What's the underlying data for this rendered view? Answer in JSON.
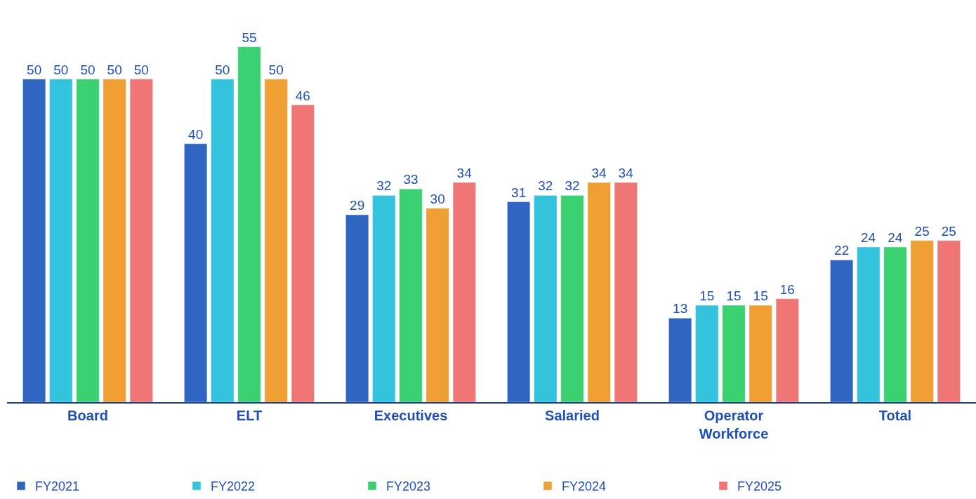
{
  "chart_data": {
    "type": "bar",
    "categories": [
      "Board",
      "ELT",
      "Executives",
      "Salaried",
      "Operator\nWorkforce",
      "Total"
    ],
    "series": [
      {
        "name": "FY2021",
        "color": "#3066c1",
        "values": [
          50,
          40,
          29,
          31,
          13,
          22
        ]
      },
      {
        "name": "FY2022",
        "color": "#33c3dc",
        "values": [
          50,
          50,
          32,
          32,
          15,
          24
        ]
      },
      {
        "name": "FY2023",
        "color": "#3bd170",
        "values": [
          50,
          55,
          33,
          32,
          15,
          24
        ]
      },
      {
        "name": "FY2024",
        "color": "#f0a033",
        "values": [
          50,
          50,
          30,
          34,
          15,
          25
        ]
      },
      {
        "name": "FY2025",
        "color": "#f07575",
        "values": [
          50,
          46,
          34,
          34,
          16,
          25
        ]
      }
    ],
    "data_labels": true,
    "legend": "bottom",
    "tick_labels": "x"
  }
}
